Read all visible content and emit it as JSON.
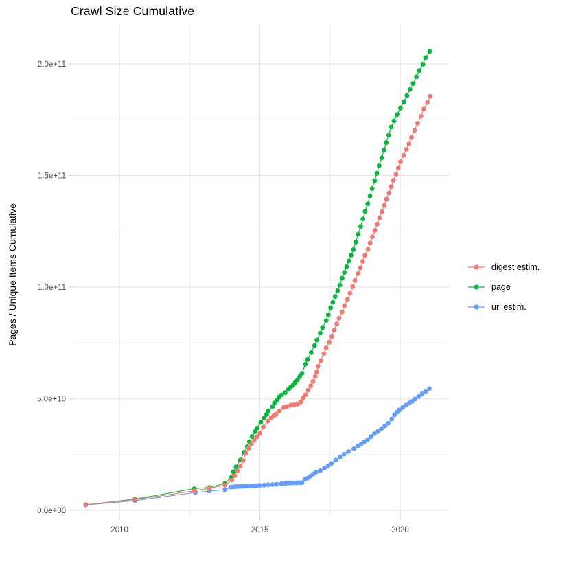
{
  "chart_data": {
    "type": "line",
    "title": "Crawl Size Cumulative",
    "xlabel": "",
    "ylabel": "Pages / Unique Items Cumulative",
    "legend_position": "right-center",
    "grid": true,
    "point_style": "filled-circle-with-line",
    "xlim": [
      2008.31,
      2021.76
    ],
    "ylim_e9": [
      -2.77,
      217.85
    ],
    "y_value_scale": 1000000000.0,
    "x_ticks": [
      {
        "value": 2010,
        "label": "2010"
      },
      {
        "value": 2015,
        "label": "2015"
      },
      {
        "value": 2020,
        "label": "2020"
      }
    ],
    "x_minor_ticks": [
      2012.5,
      2017.5
    ],
    "y_ticks": [
      {
        "value": 0,
        "label": "0.0e+00"
      },
      {
        "value": 50,
        "label": "5.0e+10"
      },
      {
        "value": 100,
        "label": "1.0e+11"
      },
      {
        "value": 150,
        "label": "1.5e+11"
      },
      {
        "value": 200,
        "label": "2.0e+11"
      }
    ],
    "y_minor_ticks": [
      25,
      75,
      125,
      175
    ],
    "series": [
      {
        "name": "digest estim.",
        "color": "#F8766D",
        "points_year_value_e9": [
          [
            2008.8,
            2.5
          ],
          [
            2010.55,
            4.8
          ],
          [
            2012.66,
            8.7
          ],
          [
            2013.2,
            9.9
          ],
          [
            2013.75,
            11.3
          ],
          [
            2014.0,
            13.5
          ],
          [
            2014.1,
            15.5
          ],
          [
            2014.2,
            17.6
          ],
          [
            2014.3,
            19.8
          ],
          [
            2014.4,
            22.3
          ],
          [
            2014.5,
            25.5
          ],
          [
            2014.6,
            27.8
          ],
          [
            2014.7,
            29.8
          ],
          [
            2014.8,
            31.5
          ],
          [
            2014.9,
            33.0
          ],
          [
            2015.0,
            34.5
          ],
          [
            2015.12,
            37.3
          ],
          [
            2015.28,
            39.9
          ],
          [
            2015.4,
            41.4
          ],
          [
            2015.5,
            42.5
          ],
          [
            2015.57,
            43.0
          ],
          [
            2015.7,
            44.5
          ],
          [
            2015.85,
            46.1
          ],
          [
            2015.97,
            46.5
          ],
          [
            2016.1,
            47.1
          ],
          [
            2016.22,
            47.3
          ],
          [
            2016.34,
            47.6
          ],
          [
            2016.46,
            48.6
          ],
          [
            2016.54,
            50.2
          ],
          [
            2016.62,
            51.7
          ],
          [
            2016.72,
            53.8
          ],
          [
            2016.81,
            55.8
          ],
          [
            2016.89,
            57.8
          ],
          [
            2016.97,
            59.9
          ],
          [
            2017.02,
            61.9
          ],
          [
            2017.07,
            64.5
          ],
          [
            2017.17,
            67.1
          ],
          [
            2017.28,
            70.2
          ],
          [
            2017.36,
            72.7
          ],
          [
            2017.47,
            75.3
          ],
          [
            2017.56,
            77.8
          ],
          [
            2017.65,
            80.7
          ],
          [
            2017.74,
            83.5
          ],
          [
            2017.82,
            86.1
          ],
          [
            2017.93,
            88.9
          ],
          [
            2018.01,
            91.7
          ],
          [
            2018.12,
            94.5
          ],
          [
            2018.21,
            97.3
          ],
          [
            2018.31,
            100.2
          ],
          [
            2018.39,
            103.0
          ],
          [
            2018.5,
            106.1
          ],
          [
            2018.58,
            108.6
          ],
          [
            2018.66,
            111.5
          ],
          [
            2018.74,
            114.2
          ],
          [
            2018.85,
            117.0
          ],
          [
            2018.93,
            119.8
          ],
          [
            2019.01,
            122.6
          ],
          [
            2019.1,
            125.4
          ],
          [
            2019.18,
            128.2
          ],
          [
            2019.26,
            131.0
          ],
          [
            2019.35,
            133.8
          ],
          [
            2019.43,
            136.6
          ],
          [
            2019.51,
            139.4
          ],
          [
            2019.6,
            142.2
          ],
          [
            2019.68,
            145.0
          ],
          [
            2019.76,
            147.8
          ],
          [
            2019.85,
            150.6
          ],
          [
            2019.93,
            153.4
          ],
          [
            2020.01,
            156.2
          ],
          [
            2020.12,
            159.0
          ],
          [
            2020.22,
            161.7
          ],
          [
            2020.31,
            164.2
          ],
          [
            2020.4,
            167.0
          ],
          [
            2020.51,
            170.2
          ],
          [
            2020.62,
            173.4
          ],
          [
            2020.74,
            176.6
          ],
          [
            2020.84,
            179.8
          ],
          [
            2020.97,
            182.7
          ],
          [
            2021.07,
            185.5
          ]
        ]
      },
      {
        "name": "page",
        "color": "#00BA38",
        "points_year_value_e9": [
          [
            2008.8,
            2.5
          ],
          [
            2010.55,
            5.0
          ],
          [
            2012.66,
            9.7
          ],
          [
            2013.2,
            10.3
          ],
          [
            2013.75,
            12.0
          ],
          [
            2013.98,
            14.8
          ],
          [
            2014.06,
            17.3
          ],
          [
            2014.15,
            19.5
          ],
          [
            2014.3,
            22.5
          ],
          [
            2014.43,
            26.0
          ],
          [
            2014.55,
            28.5
          ],
          [
            2014.63,
            30.7
          ],
          [
            2014.72,
            33.0
          ],
          [
            2014.83,
            35.3
          ],
          [
            2014.9,
            36.8
          ],
          [
            2015.03,
            39.4
          ],
          [
            2015.15,
            41.4
          ],
          [
            2015.24,
            43.0
          ],
          [
            2015.3,
            44.5
          ],
          [
            2015.45,
            46.5
          ],
          [
            2015.52,
            48.1
          ],
          [
            2015.6,
            49.3
          ],
          [
            2015.68,
            50.7
          ],
          [
            2015.77,
            51.7
          ],
          [
            2015.9,
            52.7
          ],
          [
            2016.02,
            54.2
          ],
          [
            2016.1,
            55.3
          ],
          [
            2016.18,
            56.1
          ],
          [
            2016.26,
            57.3
          ],
          [
            2016.34,
            58.5
          ],
          [
            2016.42,
            59.9
          ],
          [
            2016.5,
            61.4
          ],
          [
            2016.62,
            65.5
          ],
          [
            2016.7,
            67.6
          ],
          [
            2016.83,
            70.7
          ],
          [
            2016.95,
            73.8
          ],
          [
            2017.03,
            76.3
          ],
          [
            2017.15,
            79.4
          ],
          [
            2017.23,
            81.9
          ],
          [
            2017.36,
            85.0
          ],
          [
            2017.44,
            87.6
          ],
          [
            2017.52,
            90.7
          ],
          [
            2017.6,
            93.2
          ],
          [
            2017.68,
            95.8
          ],
          [
            2017.77,
            98.4
          ],
          [
            2017.85,
            100.9
          ],
          [
            2017.93,
            104.0
          ],
          [
            2018.01,
            106.6
          ],
          [
            2018.09,
            109.1
          ],
          [
            2018.17,
            111.7
          ],
          [
            2018.25,
            114.3
          ],
          [
            2018.33,
            116.8
          ],
          [
            2018.42,
            120.2
          ],
          [
            2018.5,
            123.7
          ],
          [
            2018.59,
            127.1
          ],
          [
            2018.67,
            130.5
          ],
          [
            2018.75,
            133.9
          ],
          [
            2018.84,
            137.3
          ],
          [
            2018.92,
            140.8
          ],
          [
            2019.0,
            144.2
          ],
          [
            2019.09,
            147.6
          ],
          [
            2019.17,
            151.0
          ],
          [
            2019.25,
            154.4
          ],
          [
            2019.34,
            157.9
          ],
          [
            2019.42,
            161.3
          ],
          [
            2019.5,
            164.7
          ],
          [
            2019.59,
            168.1
          ],
          [
            2019.68,
            171.7
          ],
          [
            2019.78,
            174.5
          ],
          [
            2019.89,
            177.3
          ],
          [
            2020.01,
            180.2
          ],
          [
            2020.13,
            183.0
          ],
          [
            2020.24,
            185.8
          ],
          [
            2020.35,
            188.6
          ],
          [
            2020.46,
            191.2
          ],
          [
            2020.58,
            194.2
          ],
          [
            2020.68,
            197.0
          ],
          [
            2020.81,
            199.9
          ],
          [
            2020.9,
            202.8
          ],
          [
            2021.05,
            205.6
          ]
        ]
      },
      {
        "name": "url estim.",
        "color": "#619CFF",
        "points_year_value_e9": [
          [
            2008.8,
            2.4
          ],
          [
            2010.55,
            4.3
          ],
          [
            2012.7,
            8.0
          ],
          [
            2013.2,
            8.6
          ],
          [
            2013.75,
            9.2
          ],
          [
            2013.96,
            10.4
          ],
          [
            2014.06,
            10.5
          ],
          [
            2014.14,
            10.6
          ],
          [
            2014.22,
            10.65
          ],
          [
            2014.3,
            10.7
          ],
          [
            2014.4,
            10.75
          ],
          [
            2014.5,
            10.8
          ],
          [
            2014.6,
            10.85
          ],
          [
            2014.67,
            10.9
          ],
          [
            2014.8,
            11.0
          ],
          [
            2014.9,
            11.1
          ],
          [
            2015.0,
            11.2
          ],
          [
            2015.15,
            11.3
          ],
          [
            2015.3,
            11.45
          ],
          [
            2015.45,
            11.55
          ],
          [
            2015.6,
            11.7
          ],
          [
            2015.77,
            11.9
          ],
          [
            2015.9,
            12.0
          ],
          [
            2016.0,
            12.2
          ],
          [
            2016.1,
            12.25
          ],
          [
            2016.2,
            12.3
          ],
          [
            2016.3,
            12.3
          ],
          [
            2016.4,
            12.35
          ],
          [
            2016.5,
            12.4
          ],
          [
            2016.6,
            14.0
          ],
          [
            2016.7,
            14.4
          ],
          [
            2016.8,
            15.3
          ],
          [
            2016.9,
            16.3
          ],
          [
            2017.0,
            17.1
          ],
          [
            2017.15,
            17.8
          ],
          [
            2017.3,
            18.9
          ],
          [
            2017.43,
            19.9
          ],
          [
            2017.55,
            21.0
          ],
          [
            2017.7,
            22.5
          ],
          [
            2017.85,
            23.8
          ],
          [
            2018.0,
            25.2
          ],
          [
            2018.15,
            26.3
          ],
          [
            2018.35,
            27.6
          ],
          [
            2018.5,
            28.8
          ],
          [
            2018.6,
            29.6
          ],
          [
            2018.72,
            30.7
          ],
          [
            2018.84,
            31.7
          ],
          [
            2018.96,
            33.0
          ],
          [
            2019.08,
            34.3
          ],
          [
            2019.2,
            35.3
          ],
          [
            2019.33,
            36.5
          ],
          [
            2019.45,
            37.8
          ],
          [
            2019.57,
            39.0
          ],
          [
            2019.7,
            41.0
          ],
          [
            2019.8,
            42.8
          ],
          [
            2019.9,
            44.0
          ],
          [
            2019.97,
            45.0
          ],
          [
            2020.09,
            46.1
          ],
          [
            2020.21,
            47.1
          ],
          [
            2020.33,
            48.1
          ],
          [
            2020.44,
            48.9
          ],
          [
            2020.53,
            49.9
          ],
          [
            2020.66,
            51.0
          ],
          [
            2020.78,
            52.2
          ],
          [
            2020.9,
            53.2
          ],
          [
            2021.04,
            54.5
          ]
        ]
      }
    ],
    "style": {
      "background": "#FFFFFF",
      "grid_major_color": "#E5E5E5",
      "grid_minor_color": "#F0F0F0",
      "tick_mark_color": "#C9C9C9",
      "axis_text_color": "#4d4d4d",
      "point_radius": 3.4,
      "line_width": 1.1
    }
  }
}
